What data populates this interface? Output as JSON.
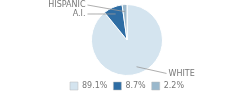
{
  "chart_data": {
    "type": "pie",
    "categories": [
      "WHITE",
      "A.I.",
      "HISPANIC"
    ],
    "values": [
      89.1,
      8.7,
      2.2
    ],
    "value_labels": [
      "89.1%",
      "8.7%",
      "2.2%"
    ],
    "colors": [
      "#d4e4ef",
      "#2e6da4",
      "#9ab8cc"
    ],
    "legend": "bottom"
  }
}
